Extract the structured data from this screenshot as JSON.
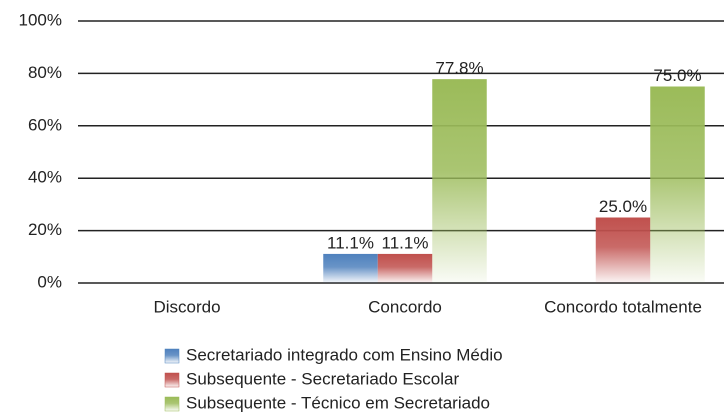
{
  "chart_data": {
    "type": "bar",
    "categories": [
      "Discordo",
      "Concordo",
      "Concordo totalmente"
    ],
    "series": [
      {
        "name": "Secretariado integrado com Ensino Médio",
        "color": "#4f81bd",
        "values": [
          null,
          11.1,
          null
        ],
        "value_labels": [
          null,
          "11.1%",
          null
        ]
      },
      {
        "name": "Subsequente - Secretariado Escolar",
        "color": "#c0504d",
        "values": [
          null,
          11.1,
          25.0
        ],
        "value_labels": [
          null,
          "11.1%",
          "25.0%"
        ]
      },
      {
        "name": "Subsequente - Técnico em Secretariado",
        "color": "#9bbb59",
        "values": [
          null,
          77.8,
          75.0
        ],
        "value_labels": [
          null,
          "77.8%",
          "75.0%"
        ]
      }
    ],
    "ylim": [
      0,
      100
    ],
    "yticks": [
      {
        "value": 0,
        "label": "0%"
      },
      {
        "value": 20,
        "label": "20%"
      },
      {
        "value": 40,
        "label": "40%"
      },
      {
        "value": 60,
        "label": "60%"
      },
      {
        "value": 80,
        "label": "80%"
      },
      {
        "value": 100,
        "label": "100%"
      }
    ],
    "grid": true
  }
}
